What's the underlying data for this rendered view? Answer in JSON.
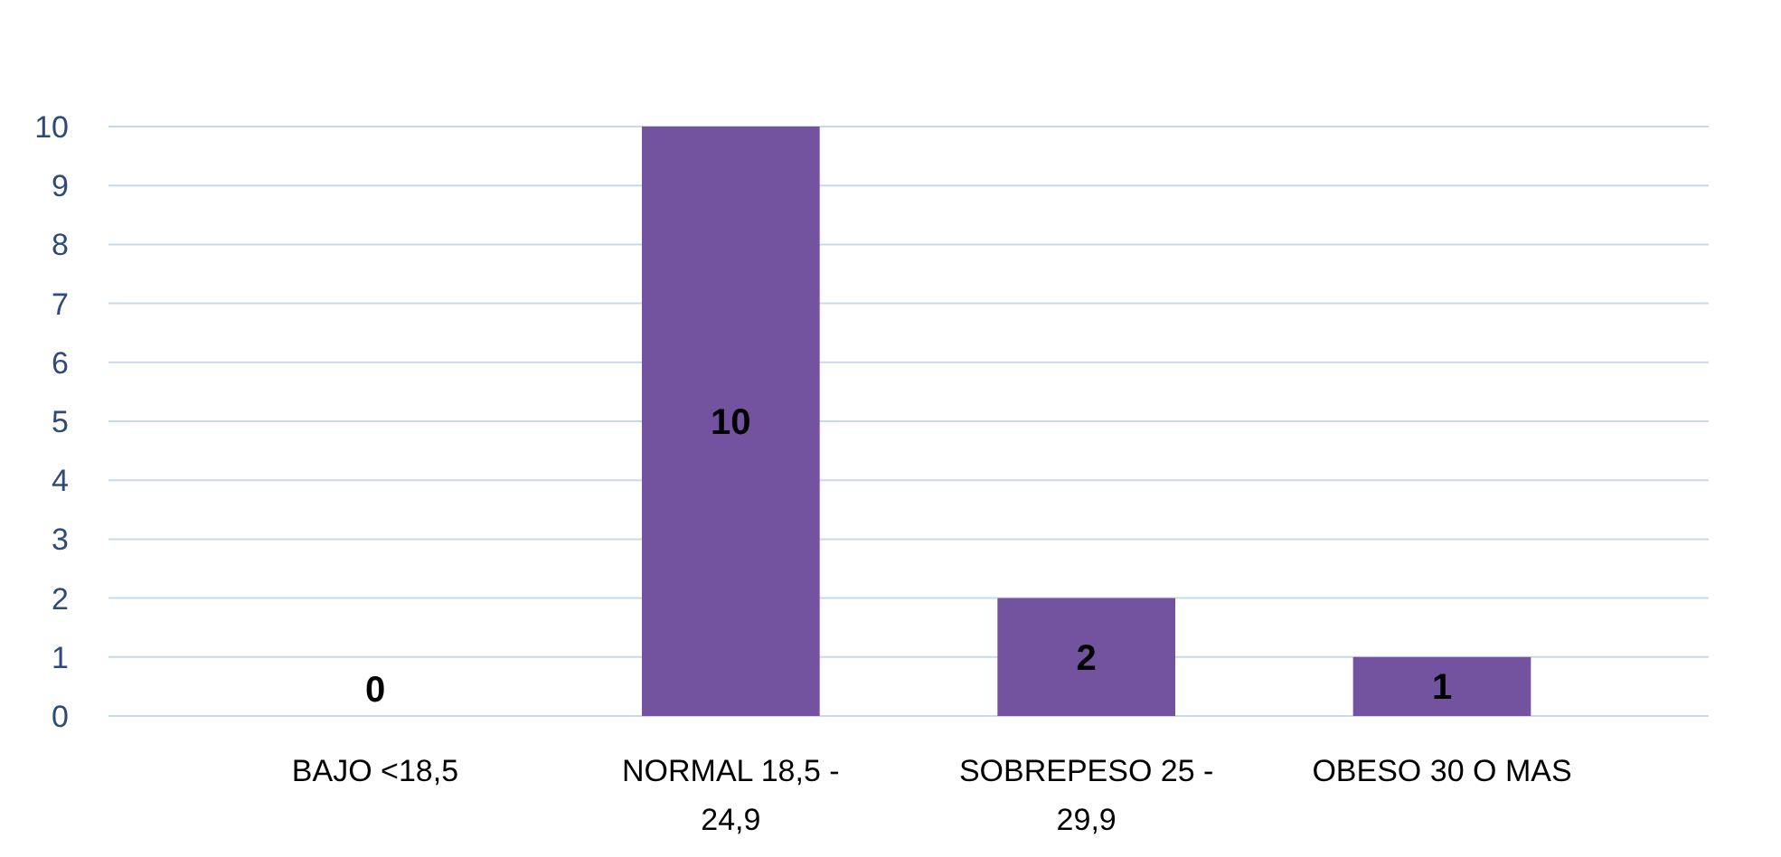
{
  "chart_data": {
    "type": "bar",
    "categories": [
      "BAJO <18,5",
      "NORMAL 18,5 - 24,9",
      "SOBREPESO 25 - 29,9",
      "OBESO 30 O MAS"
    ],
    "values": [
      0,
      10,
      2,
      1
    ],
    "color": "#7352a0",
    "ylim": [
      0,
      10
    ],
    "yticks": [
      0,
      1,
      2,
      3,
      4,
      5,
      6,
      7,
      8,
      9,
      10
    ],
    "grid": "y",
    "data_labels": true
  }
}
